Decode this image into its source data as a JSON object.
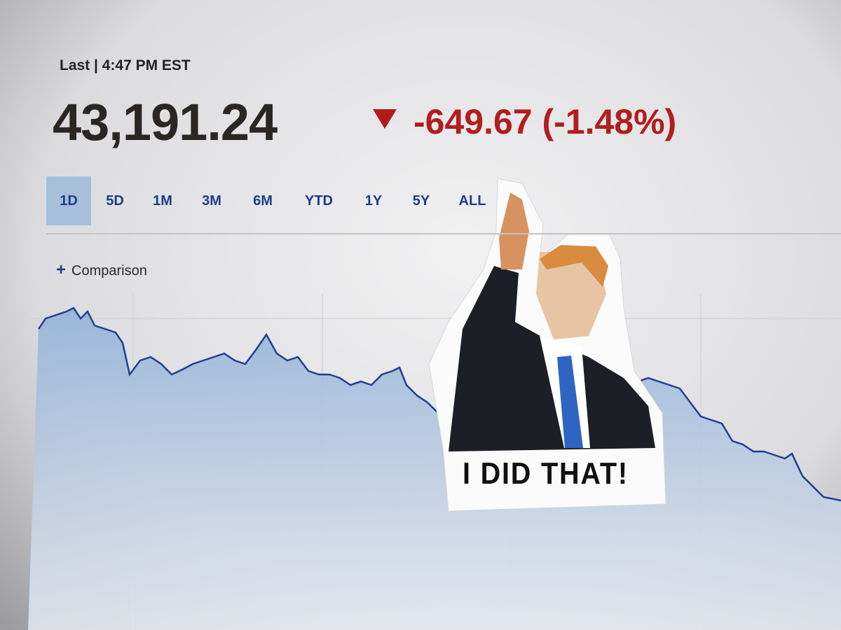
{
  "header": {
    "last": "Last | 4:47 PM EST"
  },
  "quote": {
    "price": "43,191.24",
    "change": "-649.67 (-1.48%)"
  },
  "tabs": {
    "items": [
      "1D",
      "5D",
      "1M",
      "3M",
      "6M",
      "YTD",
      "1Y",
      "5Y",
      "ALL"
    ],
    "selected": 0
  },
  "comparison": {
    "label": "Comparison"
  },
  "sticker": {
    "caption": "I DID THAT!"
  }
}
